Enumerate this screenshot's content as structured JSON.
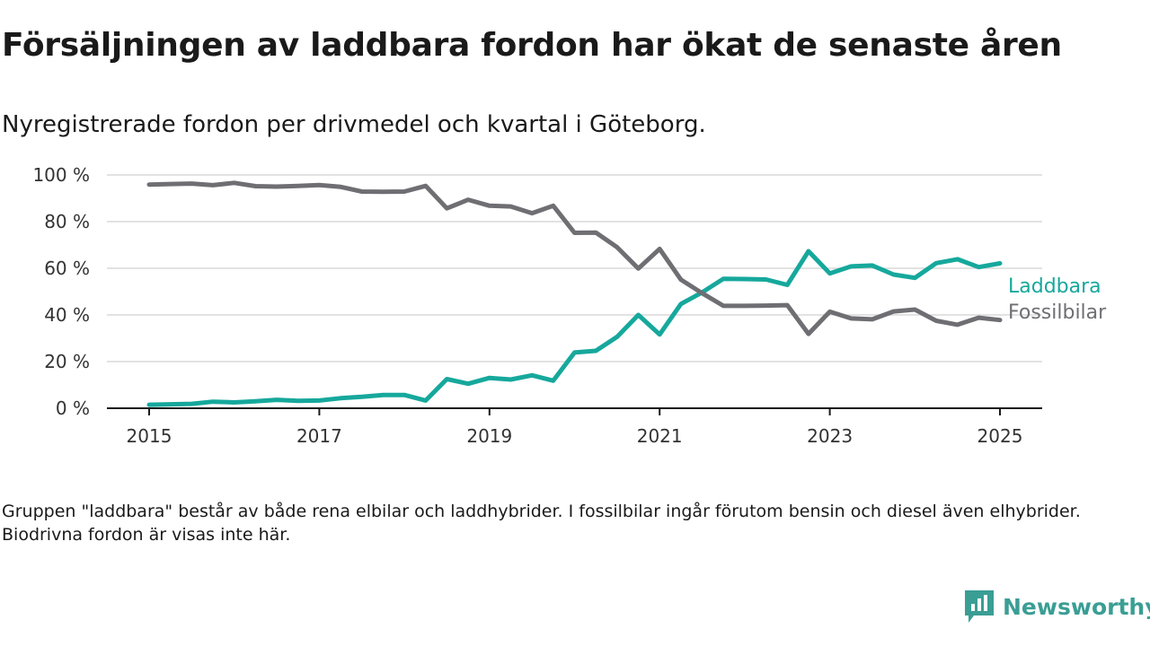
{
  "header": {
    "title": "Försäljningen av laddbara fordon har ökat de senaste åren",
    "subtitle": "Nyregistrerade fordon per drivmedel och kvartal i Göteborg."
  },
  "footnote": "Gruppen \"laddbara\" består av både rena elbilar och laddhybrider. I fossilbilar ingår förutom bensin och diesel även elhybrider. Biodrivna fordon är visas inte här.",
  "brand": {
    "name": "Newsworthy",
    "color": "#3a9e94"
  },
  "chart_data": {
    "type": "line",
    "xlabel": "",
    "ylabel": "",
    "xlim": [
      2015,
      2025
    ],
    "ylim": [
      0,
      100
    ],
    "y_ticks": [
      0,
      20,
      40,
      60,
      80,
      100
    ],
    "y_tick_labels": [
      "0 %",
      "20 %",
      "40 %",
      "60 %",
      "80 %",
      "100 %"
    ],
    "x_ticks": [
      2015,
      2017,
      2019,
      2021,
      2023,
      2025
    ],
    "x_tick_labels": [
      "2015",
      "2017",
      "2019",
      "2021",
      "2023",
      "2025"
    ],
    "grid": "horizontal",
    "legend": "inline-right",
    "x": [
      2015.0,
      2015.25,
      2015.5,
      2015.75,
      2016.0,
      2016.25,
      2016.5,
      2016.75,
      2017.0,
      2017.25,
      2017.5,
      2017.75,
      2018.0,
      2018.25,
      2018.5,
      2018.75,
      2019.0,
      2019.25,
      2019.5,
      2019.75,
      2020.0,
      2020.25,
      2020.5,
      2020.75,
      2021.0,
      2021.25,
      2021.5,
      2021.75,
      2022.0,
      2022.25,
      2022.5,
      2022.75,
      2023.0,
      2023.25,
      2023.5,
      2023.75,
      2024.0,
      2024.25,
      2024.5,
      2024.75,
      2025.0
    ],
    "series": [
      {
        "name": "Laddbara",
        "color": "#16a89c",
        "values": [
          1.5,
          1.7,
          1.9,
          2.8,
          2.5,
          3.0,
          3.6,
          3.2,
          3.3,
          4.3,
          4.9,
          5.7,
          5.7,
          3.3,
          12.5,
          10.5,
          13.0,
          12.3,
          14.1,
          11.8,
          23.9,
          24.6,
          30.6,
          40.0,
          31.6,
          44.7,
          49.7,
          55.5,
          55.4,
          55.2,
          52.9,
          67.3,
          57.8,
          60.8,
          61.2,
          57.3,
          55.9,
          62.2,
          63.9,
          60.5,
          62.1
        ]
      },
      {
        "name": "Fossilbilar",
        "color": "#6e6e73",
        "values": [
          95.9,
          96.1,
          96.3,
          95.6,
          96.6,
          95.2,
          95.0,
          95.3,
          95.7,
          94.9,
          92.9,
          92.8,
          92.9,
          95.3,
          85.7,
          89.4,
          86.8,
          86.5,
          83.6,
          86.8,
          75.2,
          75.3,
          69.0,
          59.9,
          68.3,
          55.1,
          49.3,
          43.9,
          43.9,
          44.0,
          44.2,
          31.9,
          41.4,
          38.5,
          38.1,
          41.5,
          42.3,
          37.5,
          35.8,
          38.8,
          37.8
        ]
      }
    ]
  }
}
